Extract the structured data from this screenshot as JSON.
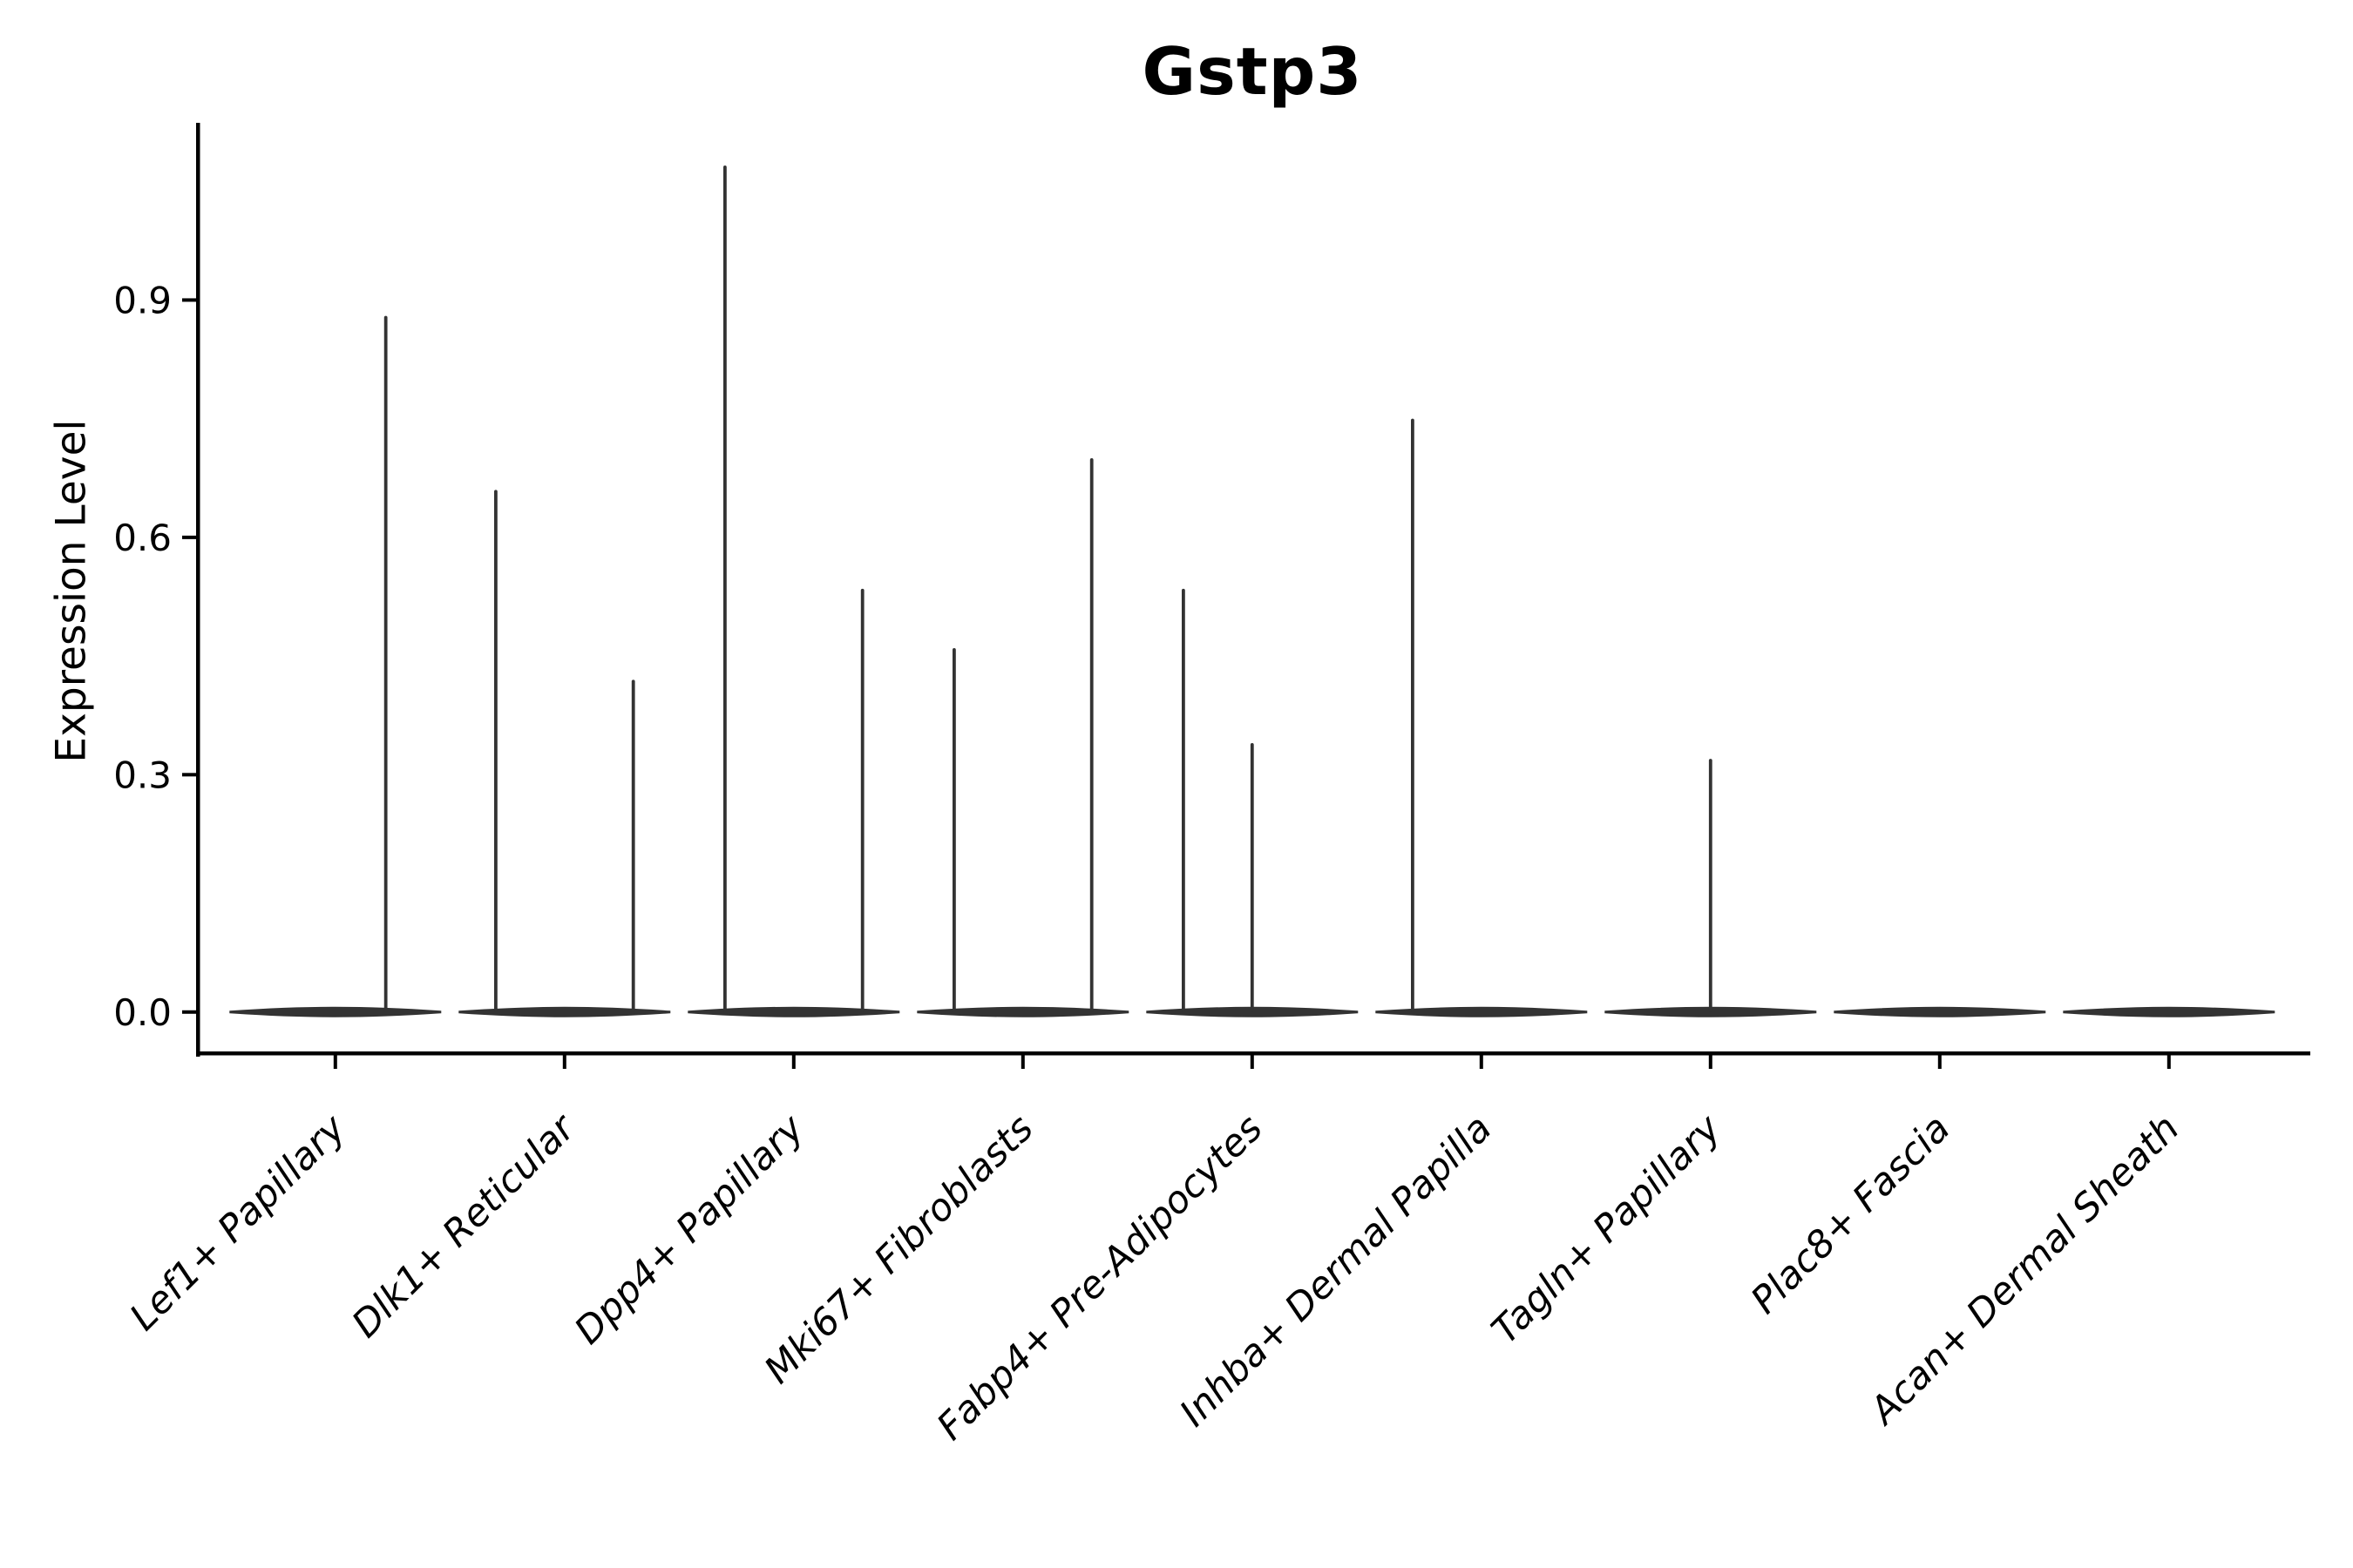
{
  "title": "Gstp3",
  "y_axis": {
    "label": "Expression Level",
    "tick_labels": [
      "0.0",
      "0.3",
      "0.6",
      "0.9"
    ],
    "tick_values": [
      0.0,
      0.3,
      0.6,
      0.9
    ]
  },
  "colors": {
    "violin": "#333333",
    "axis": "#000000",
    "text": "#000000",
    "background": "#ffffff"
  },
  "chart_data": {
    "type": "violin",
    "title": "Gstp3",
    "xlabel": "",
    "ylabel": "Expression Level",
    "ylim": [
      -0.052,
      1.124
    ],
    "grid": false,
    "legend": false,
    "y_ticks": [
      0.0,
      0.3,
      0.6,
      0.9
    ],
    "categories": [
      "Lef1+ Papillary",
      "Dlk1+ Reticular",
      "Dpp4+ Papillary",
      "Mki67+ Fibroblasts",
      "Fabp4+ Pre-Adipocytes",
      "Inhba+ Dermal Papilla",
      "Tagln+ Papillary",
      "Plac8+ Fascia",
      "Acan+ Dermal Sheath"
    ],
    "violins": [
      {
        "category": "Lef1+ Papillary",
        "zero_base": true,
        "spikes": [
          {
            "offset": 0.22,
            "peak": 0.88
          }
        ]
      },
      {
        "category": "Dlk1+ Reticular",
        "zero_base": true,
        "spikes": [
          {
            "offset": -0.3,
            "peak": 0.66
          },
          {
            "offset": 0.3,
            "peak": 0.42
          }
        ]
      },
      {
        "category": "Dpp4+ Papillary",
        "zero_base": true,
        "spikes": [
          {
            "offset": -0.3,
            "peak": 1.07
          },
          {
            "offset": 0.3,
            "peak": 0.535
          }
        ]
      },
      {
        "category": "Mki67+ Fibroblasts",
        "zero_base": true,
        "spikes": [
          {
            "offset": -0.3,
            "peak": 0.46
          },
          {
            "offset": 0.3,
            "peak": 0.7
          }
        ]
      },
      {
        "category": "Fabp4+ Pre-Adipocytes",
        "zero_base": true,
        "spikes": [
          {
            "offset": -0.3,
            "peak": 0.535
          },
          {
            "offset": 0.0,
            "peak": 0.34
          }
        ]
      },
      {
        "category": "Inhba+ Dermal Papilla",
        "zero_base": true,
        "spikes": [
          {
            "offset": -0.3,
            "peak": 0.75
          }
        ]
      },
      {
        "category": "Tagln+ Papillary",
        "zero_base": true,
        "spikes": [
          {
            "offset": 0.0,
            "peak": 0.32
          }
        ]
      },
      {
        "category": "Plac8+ Fascia",
        "zero_base": true,
        "spikes": []
      },
      {
        "category": "Acan+ Dermal Sheath",
        "zero_base": true,
        "spikes": []
      }
    ]
  }
}
